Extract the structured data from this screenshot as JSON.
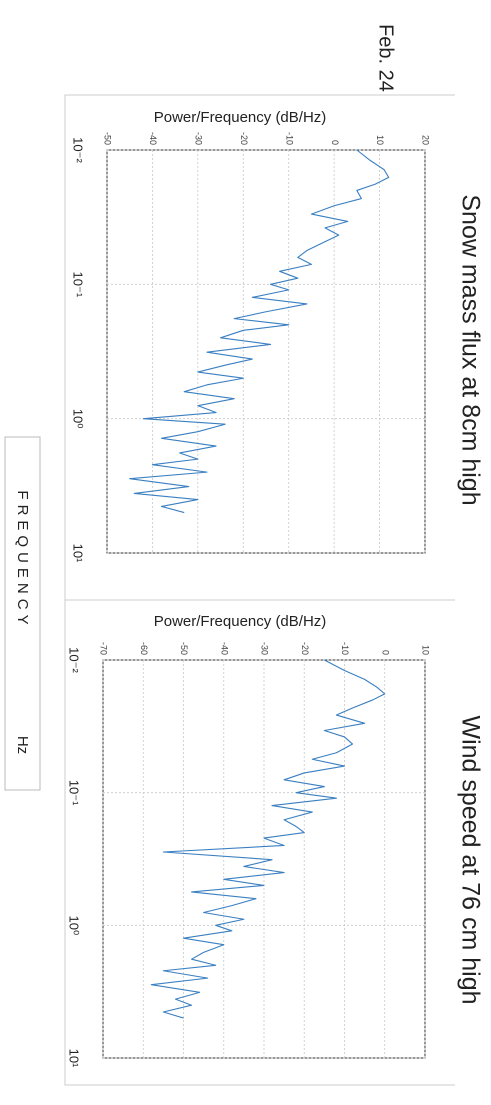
{
  "date": "Feb. 24",
  "x_label": "FREQUENCY",
  "x_unit": "Hz",
  "chart_data": [
    {
      "type": "line",
      "title": "Snow mass flux at 8cm high",
      "ylabel": "Power/Frequency (dB/Hz)",
      "color": "#3a7fc1",
      "xscale": "log",
      "grid": true,
      "x": [
        0.01,
        0.012,
        0.014,
        0.016,
        0.018,
        0.02,
        0.023,
        0.026,
        0.03,
        0.034,
        0.038,
        0.043,
        0.05,
        0.056,
        0.063,
        0.071,
        0.08,
        0.09,
        0.1,
        0.11,
        0.125,
        0.14,
        0.16,
        0.18,
        0.2,
        0.22,
        0.25,
        0.28,
        0.32,
        0.36,
        0.4,
        0.45,
        0.5,
        0.56,
        0.63,
        0.71,
        0.8,
        0.9,
        1.0,
        1.1,
        1.25,
        1.4,
        1.6,
        1.8,
        2.0,
        2.2,
        2.5,
        2.8,
        3.2,
        3.6,
        4.0,
        4.5,
        5.0
      ],
      "values": [
        5,
        8,
        11,
        12,
        9,
        5,
        6,
        0,
        -5,
        3,
        -2,
        1,
        -3,
        -6,
        -8,
        -5,
        -12,
        -8,
        -14,
        -10,
        -18,
        -6,
        -15,
        -22,
        -10,
        -20,
        -25,
        -14,
        -28,
        -18,
        -24,
        -30,
        -20,
        -28,
        -33,
        -22,
        -30,
        -26,
        -42,
        -24,
        -30,
        -38,
        -26,
        -34,
        -30,
        -40,
        -28,
        -45,
        -32,
        -44,
        -30,
        -38,
        -33
      ],
      "xlim": [
        0.01,
        10
      ],
      "xticks": [
        {
          "value": 0.01,
          "label": "10⁻²"
        },
        {
          "value": 0.1,
          "label": "10⁻¹"
        },
        {
          "value": 1,
          "label": "10⁰"
        },
        {
          "value": 10,
          "label": "10¹"
        }
      ],
      "ylim": [
        -50,
        20
      ],
      "yticks": [
        -50,
        -40,
        -30,
        -20,
        -10,
        0,
        10,
        20
      ]
    },
    {
      "type": "line",
      "title": "Wind speed at 76 cm high",
      "ylabel": "Power/Frequency (dB/Hz)",
      "color": "#3a7fc1",
      "xscale": "log",
      "grid": true,
      "x": [
        0.01,
        0.012,
        0.014,
        0.016,
        0.018,
        0.02,
        0.023,
        0.026,
        0.03,
        0.034,
        0.038,
        0.043,
        0.05,
        0.056,
        0.063,
        0.071,
        0.08,
        0.09,
        0.1,
        0.11,
        0.125,
        0.14,
        0.16,
        0.18,
        0.2,
        0.22,
        0.25,
        0.28,
        0.32,
        0.36,
        0.4,
        0.45,
        0.5,
        0.56,
        0.63,
        0.71,
        0.8,
        0.9,
        1.0,
        1.1,
        1.25,
        1.4,
        1.6,
        1.8,
        2.0,
        2.2,
        2.5,
        2.8,
        3.2,
        3.6,
        4.0,
        4.5,
        5.0
      ],
      "values": [
        -15,
        -10,
        -5,
        -2,
        0,
        -3,
        -8,
        -12,
        -5,
        -15,
        -10,
        -8,
        -12,
        -18,
        -10,
        -20,
        -25,
        -15,
        -22,
        -12,
        -28,
        -18,
        -25,
        -22,
        -20,
        -30,
        -25,
        -55,
        -28,
        -35,
        -25,
        -40,
        -30,
        -48,
        -32,
        -38,
        -45,
        -35,
        -42,
        -38,
        -50,
        -40,
        -45,
        -48,
        -42,
        -55,
        -44,
        -58,
        -46,
        -52,
        -48,
        -55,
        -50
      ],
      "xlim": [
        0.01,
        10
      ],
      "xticks": [
        {
          "value": 0.01,
          "label": "10⁻²"
        },
        {
          "value": 0.1,
          "label": "10⁻¹"
        },
        {
          "value": 1,
          "label": "10⁰"
        },
        {
          "value": 10,
          "label": "10¹"
        }
      ],
      "ylim": [
        -70,
        10
      ],
      "yticks": [
        -70,
        -60,
        -50,
        -40,
        -30,
        -20,
        -10,
        0,
        10
      ]
    }
  ]
}
